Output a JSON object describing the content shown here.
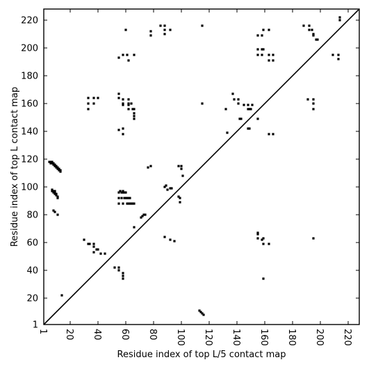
{
  "chart_data": {
    "type": "scatter",
    "title": "",
    "xlabel": "Residue index of top L/5 contact map",
    "ylabel": "Residue index of top L contact map",
    "xlim": [
      1,
      228
    ],
    "ylim": [
      1,
      228
    ],
    "x_ticks": [
      1,
      20,
      40,
      60,
      80,
      100,
      120,
      140,
      160,
      180,
      200,
      220
    ],
    "y_ticks": [
      1,
      20,
      40,
      60,
      80,
      100,
      120,
      140,
      160,
      180,
      200,
      220
    ],
    "x_tick_rotation": -90,
    "grid": false,
    "legend": "none",
    "diagonal": true,
    "marker_color": "#000000",
    "series": [
      {
        "values": [
          [
            5,
            118
          ],
          [
            6,
            118
          ],
          [
            6,
            117
          ],
          [
            7,
            118
          ],
          [
            7,
            117
          ],
          [
            8,
            117
          ],
          [
            8,
            116
          ],
          [
            9,
            116
          ],
          [
            9,
            115
          ],
          [
            10,
            115
          ],
          [
            10,
            114
          ],
          [
            11,
            114
          ],
          [
            11,
            113
          ],
          [
            12,
            113
          ],
          [
            12,
            112
          ],
          [
            13,
            112
          ],
          [
            13,
            111
          ],
          [
            7,
            98
          ],
          [
            7,
            97
          ],
          [
            8,
            97
          ],
          [
            8,
            96
          ],
          [
            9,
            97
          ],
          [
            9,
            96
          ],
          [
            9,
            95
          ],
          [
            10,
            95
          ],
          [
            10,
            94
          ],
          [
            11,
            93
          ],
          [
            11,
            92
          ],
          [
            8,
            83
          ],
          [
            9,
            82
          ],
          [
            11,
            80
          ],
          [
            14,
            22
          ],
          [
            30,
            62
          ],
          [
            33,
            59
          ],
          [
            34,
            59
          ],
          [
            37,
            59
          ],
          [
            37,
            57
          ],
          [
            37,
            53
          ],
          [
            39,
            55
          ],
          [
            40,
            55
          ],
          [
            42,
            52
          ],
          [
            45,
            52
          ],
          [
            33,
            164
          ],
          [
            33,
            160
          ],
          [
            33,
            156
          ],
          [
            37,
            164
          ],
          [
            37,
            160
          ],
          [
            40,
            164
          ],
          [
            52,
            42
          ],
          [
            55,
            42
          ],
          [
            55,
            40
          ],
          [
            58,
            38
          ],
          [
            58,
            36
          ],
          [
            58,
            34
          ],
          [
            55,
            167
          ],
          [
            55,
            164
          ],
          [
            58,
            163
          ],
          [
            58,
            160
          ],
          [
            58,
            159
          ],
          [
            62,
            163
          ],
          [
            62,
            160
          ],
          [
            62,
            159
          ],
          [
            62,
            156
          ],
          [
            64,
            160
          ],
          [
            65,
            156
          ],
          [
            66,
            156
          ],
          [
            66,
            153
          ],
          [
            66,
            151
          ],
          [
            66,
            149
          ],
          [
            55,
            141
          ],
          [
            58,
            142
          ],
          [
            58,
            138
          ],
          [
            55,
            96
          ],
          [
            56,
            97
          ],
          [
            57,
            96
          ],
          [
            58,
            97
          ],
          [
            58,
            96
          ],
          [
            59,
            96
          ],
          [
            60,
            96
          ],
          [
            55,
            92
          ],
          [
            57,
            92
          ],
          [
            59,
            92
          ],
          [
            60,
            92
          ],
          [
            61,
            92
          ],
          [
            62,
            92
          ],
          [
            63,
            92
          ],
          [
            55,
            88
          ],
          [
            58,
            88
          ],
          [
            61,
            88
          ],
          [
            62,
            88
          ],
          [
            63,
            88
          ],
          [
            64,
            88
          ],
          [
            65,
            88
          ],
          [
            66,
            88
          ],
          [
            66,
            71
          ],
          [
            71,
            78
          ],
          [
            72,
            79
          ],
          [
            73,
            80
          ],
          [
            74,
            80
          ],
          [
            76,
            114
          ],
          [
            78,
            115
          ],
          [
            55,
            193
          ],
          [
            58,
            195
          ],
          [
            61,
            195
          ],
          [
            62,
            191
          ],
          [
            66,
            195
          ],
          [
            60,
            213
          ],
          [
            78,
            212
          ],
          [
            78,
            209
          ],
          [
            85,
            216
          ],
          [
            88,
            216
          ],
          [
            88,
            213
          ],
          [
            88,
            210
          ],
          [
            92,
            213
          ],
          [
            88,
            100
          ],
          [
            89,
            101
          ],
          [
            90,
            98
          ],
          [
            92,
            99
          ],
          [
            93,
            99
          ],
          [
            88,
            64
          ],
          [
            92,
            62
          ],
          [
            95,
            61
          ],
          [
            98,
            115
          ],
          [
            100,
            115
          ],
          [
            100,
            113
          ],
          [
            101,
            108
          ],
          [
            98,
            93
          ],
          [
            99,
            92
          ],
          [
            99,
            89
          ],
          [
            113,
            11
          ],
          [
            114,
            10
          ],
          [
            115,
            9
          ],
          [
            116,
            8
          ],
          [
            115,
            160
          ],
          [
            115,
            216
          ],
          [
            132,
            156
          ],
          [
            133,
            139
          ],
          [
            137,
            167
          ],
          [
            138,
            163
          ],
          [
            141,
            163
          ],
          [
            141,
            160
          ],
          [
            142,
            149
          ],
          [
            143,
            149
          ],
          [
            145,
            159
          ],
          [
            148,
            159
          ],
          [
            148,
            156
          ],
          [
            149,
            156
          ],
          [
            150,
            156
          ],
          [
            151,
            159
          ],
          [
            148,
            142
          ],
          [
            149,
            142
          ],
          [
            155,
            149
          ],
          [
            155,
            209
          ],
          [
            155,
            199
          ],
          [
            155,
            195
          ],
          [
            158,
            209
          ],
          [
            158,
            199
          ],
          [
            158,
            195
          ],
          [
            159,
            213
          ],
          [
            159,
            199
          ],
          [
            163,
            213
          ],
          [
            163,
            195
          ],
          [
            163,
            191
          ],
          [
            166,
            195
          ],
          [
            166,
            191
          ],
          [
            155,
            67
          ],
          [
            155,
            66
          ],
          [
            155,
            63
          ],
          [
            158,
            62
          ],
          [
            159,
            63
          ],
          [
            159,
            59
          ],
          [
            163,
            59
          ],
          [
            159,
            34
          ],
          [
            163,
            138
          ],
          [
            166,
            138
          ],
          [
            188,
            216
          ],
          [
            191,
            163
          ],
          [
            192,
            216
          ],
          [
            192,
            213
          ],
          [
            194,
            213
          ],
          [
            195,
            210
          ],
          [
            195,
            209
          ],
          [
            195,
            163
          ],
          [
            195,
            160
          ],
          [
            195,
            156
          ],
          [
            197,
            206
          ],
          [
            198,
            206
          ],
          [
            195,
            63
          ],
          [
            209,
            195
          ],
          [
            213,
            195
          ],
          [
            213,
            192
          ],
          [
            214,
            222
          ],
          [
            214,
            220
          ]
        ]
      }
    ]
  }
}
